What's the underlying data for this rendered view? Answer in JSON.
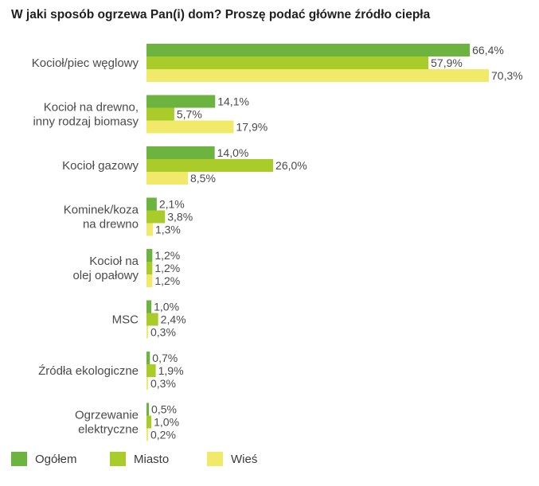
{
  "chart_data": {
    "type": "bar",
    "orientation": "horizontal",
    "title": "W jaki sposób ogrzewa Pan(i) dom? Proszę podać główne źródło ciepła",
    "categories": [
      [
        "Kocioł/piec węglowy"
      ],
      [
        "Kocioł na drewno,",
        "inny rodzaj biomasy"
      ],
      [
        "Kocioł gazowy"
      ],
      [
        "Kominek/koza",
        "na drewno"
      ],
      [
        "Kocioł na",
        "olej opałowy"
      ],
      [
        "MSC"
      ],
      [
        "Źródła ekologiczne"
      ],
      [
        "Ogrzewanie",
        "elektryczne"
      ]
    ],
    "series": [
      {
        "name": "Ogółem",
        "color": "#6db33f",
        "values": [
          66.4,
          14.1,
          14.0,
          2.1,
          1.2,
          1.0,
          0.7,
          0.5
        ],
        "labels": [
          "66,4%",
          "14,1%",
          "14,0%",
          "2,1%",
          "1,2%",
          "1,0%",
          "0,7%",
          "0,5%"
        ]
      },
      {
        "name": "Miasto",
        "color": "#a9cc2a",
        "values": [
          57.9,
          5.7,
          26.0,
          3.8,
          1.2,
          2.4,
          1.9,
          1.0
        ],
        "labels": [
          "57,9%",
          "5,7%",
          "26,0%",
          "3,8%",
          "1,2%",
          "2,4%",
          "1,9%",
          "1,0%"
        ]
      },
      {
        "name": "Wieś",
        "color": "#f0e96a",
        "values": [
          70.3,
          17.9,
          8.5,
          1.3,
          1.2,
          0.3,
          0.3,
          0.2
        ],
        "labels": [
          "70,3%",
          "17,9%",
          "8,5%",
          "1,3%",
          "1,2%",
          "0,3%",
          "0,3%",
          "0,2%"
        ]
      }
    ],
    "xlim": [
      0,
      70.3
    ],
    "grid": false,
    "legend_position": "bottom-left"
  }
}
